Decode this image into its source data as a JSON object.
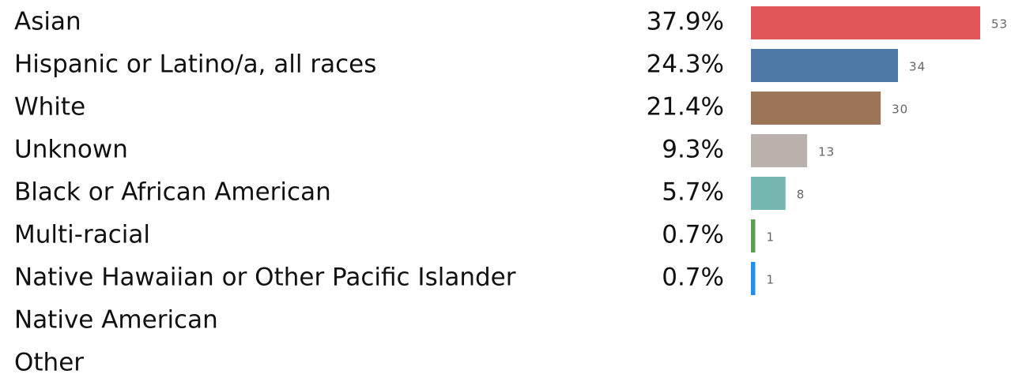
{
  "chart_data": {
    "type": "hbar",
    "categories": [
      "Asian",
      "Hispanic or Latino/a, all races",
      "White",
      "Unknown",
      "Black or African American",
      "Multi-racial",
      "Native Hawaiian or Other Pacific Islander",
      "Native American",
      "Other"
    ],
    "values": [
      53,
      34,
      30,
      13,
      8,
      1,
      1,
      null,
      null
    ],
    "shares": [
      "37.9%",
      "24.3%",
      "21.4%",
      "9.3%",
      "5.7%",
      "0.7%",
      "0.7%",
      null,
      null
    ],
    "colors": [
      "#e15759",
      "#4e79a7",
      "#9c7457",
      "#bab0ac",
      "#76b7b2",
      "#59a14f",
      "#1f8ff0",
      null,
      null
    ]
  }
}
